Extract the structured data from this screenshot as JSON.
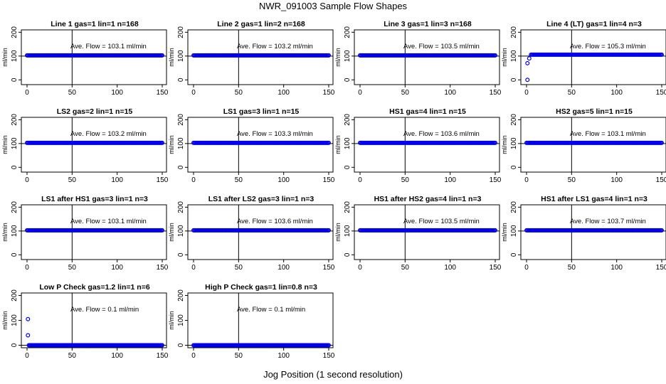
{
  "figure": {
    "title": "NWR_091003  Sample Flow Shapes",
    "xlabel": "Jog Position (1 second resolution)"
  },
  "colors": {
    "points": "#0000ee",
    "axis": "#000000",
    "background": "#ffffff"
  },
  "chart_data": [
    {
      "type": "scatter",
      "title": "Line 1 gas=1 lin=1 n=168",
      "ylabel": "ml/min",
      "annotation": "Ave. Flow =  103.1  ml/min",
      "xlim": [
        0,
        150
      ],
      "ylim": [
        -20,
        210
      ],
      "xticks": [
        0,
        50,
        100,
        150
      ],
      "yticks": [
        0,
        100,
        200
      ],
      "vline": 50,
      "hline": 100,
      "series": [
        {
          "x_range": [
            0,
            150
          ],
          "y": 103
        }
      ],
      "outliers": []
    },
    {
      "type": "scatter",
      "title": "Line 2 gas=1 lin=2 n=168",
      "ylabel": "ml/min",
      "annotation": "Ave. Flow =  103.2  ml/min",
      "xlim": [
        0,
        150
      ],
      "ylim": [
        -20,
        210
      ],
      "xticks": [
        0,
        50,
        100,
        150
      ],
      "yticks": [
        0,
        100,
        200
      ],
      "vline": 50,
      "hline": 100,
      "series": [
        {
          "x_range": [
            0,
            150
          ],
          "y": 103
        }
      ],
      "outliers": []
    },
    {
      "type": "scatter",
      "title": "Line 3 gas=1 lin=3 n=168",
      "ylabel": "ml/min",
      "annotation": "Ave. Flow =  103.5  ml/min",
      "xlim": [
        0,
        150
      ],
      "ylim": [
        -20,
        210
      ],
      "xticks": [
        0,
        50,
        100,
        150
      ],
      "yticks": [
        0,
        100,
        200
      ],
      "vline": 50,
      "hline": 100,
      "series": [
        {
          "x_range": [
            0,
            150
          ],
          "y": 103
        }
      ],
      "outliers": []
    },
    {
      "type": "scatter",
      "title": "Line 4 (LT) gas=1 lin=4 n=3",
      "ylabel": "ml/min",
      "annotation": "Ave. Flow =  105.3  ml/min",
      "xlim": [
        0,
        150
      ],
      "ylim": [
        -20,
        210
      ],
      "xticks": [
        0,
        50,
        100,
        150
      ],
      "yticks": [
        0,
        100,
        200
      ],
      "vline": 50,
      "hline": 100,
      "series": [
        {
          "x_range": [
            5,
            150
          ],
          "y": 106
        }
      ],
      "outliers": [
        {
          "x": 1,
          "y": 0
        },
        {
          "x": 1,
          "y": 70
        },
        {
          "x": 3,
          "y": 90
        }
      ]
    },
    {
      "type": "scatter",
      "title": "LS2 gas=2 lin=1 n=15",
      "ylabel": "ml/min",
      "annotation": "Ave. Flow =  103.2  ml/min",
      "xlim": [
        0,
        150
      ],
      "ylim": [
        -20,
        210
      ],
      "xticks": [
        0,
        50,
        100,
        150
      ],
      "yticks": [
        0,
        100,
        200
      ],
      "vline": 50,
      "hline": 100,
      "series": [
        {
          "x_range": [
            0,
            150
          ],
          "y": 103
        }
      ],
      "outliers": []
    },
    {
      "type": "scatter",
      "title": "LS1 gas=3 lin=1 n=15",
      "ylabel": "ml/min",
      "annotation": "Ave. Flow =  103.3  ml/min",
      "xlim": [
        0,
        150
      ],
      "ylim": [
        -20,
        210
      ],
      "xticks": [
        0,
        50,
        100,
        150
      ],
      "yticks": [
        0,
        100,
        200
      ],
      "vline": 50,
      "hline": 100,
      "series": [
        {
          "x_range": [
            0,
            150
          ],
          "y": 103
        }
      ],
      "outliers": []
    },
    {
      "type": "scatter",
      "title": "HS1 gas=4 lin=1 n=15",
      "ylabel": "ml/min",
      "annotation": "Ave. Flow =  103.6  ml/min",
      "xlim": [
        0,
        150
      ],
      "ylim": [
        -20,
        210
      ],
      "xticks": [
        0,
        50,
        100,
        150
      ],
      "yticks": [
        0,
        100,
        200
      ],
      "vline": 50,
      "hline": 100,
      "series": [
        {
          "x_range": [
            0,
            150
          ],
          "y": 103
        }
      ],
      "outliers": []
    },
    {
      "type": "scatter",
      "title": "HS2 gas=5 lin=1 n=15",
      "ylabel": "ml/min",
      "annotation": "Ave. Flow =  103.1  ml/min",
      "xlim": [
        0,
        150
      ],
      "ylim": [
        -20,
        210
      ],
      "xticks": [
        0,
        50,
        100,
        150
      ],
      "yticks": [
        0,
        100,
        200
      ],
      "vline": 50,
      "hline": 100,
      "series": [
        {
          "x_range": [
            0,
            150
          ],
          "y": 103
        }
      ],
      "outliers": []
    },
    {
      "type": "scatter",
      "title": "LS1 after HS1 gas=3 lin=1 n=3",
      "ylabel": "ml/min",
      "annotation": "Ave. Flow =  103.1  ml/min",
      "xlim": [
        0,
        150
      ],
      "ylim": [
        -20,
        210
      ],
      "xticks": [
        0,
        50,
        100,
        150
      ],
      "yticks": [
        0,
        100,
        200
      ],
      "vline": 50,
      "hline": 100,
      "series": [
        {
          "x_range": [
            0,
            150
          ],
          "y": 103
        }
      ],
      "outliers": []
    },
    {
      "type": "scatter",
      "title": "LS1 after LS2 gas=3 lin=1 n=3",
      "ylabel": "ml/min",
      "annotation": "Ave. Flow =  103.6  ml/min",
      "xlim": [
        0,
        150
      ],
      "ylim": [
        -20,
        210
      ],
      "xticks": [
        0,
        50,
        100,
        150
      ],
      "yticks": [
        0,
        100,
        200
      ],
      "vline": 50,
      "hline": 100,
      "series": [
        {
          "x_range": [
            0,
            150
          ],
          "y": 103
        }
      ],
      "outliers": []
    },
    {
      "type": "scatter",
      "title": "HS1 after HS2 gas=4 lin=1 n=3",
      "ylabel": "ml/min",
      "annotation": "Ave. Flow =  103.5  ml/min",
      "xlim": [
        0,
        150
      ],
      "ylim": [
        -20,
        210
      ],
      "xticks": [
        0,
        50,
        100,
        150
      ],
      "yticks": [
        0,
        100,
        200
      ],
      "vline": 50,
      "hline": 100,
      "series": [
        {
          "x_range": [
            0,
            150
          ],
          "y": 103
        }
      ],
      "outliers": []
    },
    {
      "type": "scatter",
      "title": "HS1 after LS1 gas=4 lin=1 n=3",
      "ylabel": "ml/min",
      "annotation": "Ave. Flow =  103.7  ml/min",
      "xlim": [
        0,
        150
      ],
      "ylim": [
        -20,
        210
      ],
      "xticks": [
        0,
        50,
        100,
        150
      ],
      "yticks": [
        0,
        100,
        200
      ],
      "vline": 50,
      "hline": 100,
      "series": [
        {
          "x_range": [
            0,
            150
          ],
          "y": 103
        }
      ],
      "outliers": []
    },
    {
      "type": "scatter",
      "title": "Low P Check gas=1.2 lin=1 n=6",
      "ylabel": "ml/min",
      "annotation": "Ave. Flow =  0.1  ml/min",
      "xlim": [
        0,
        150
      ],
      "ylim": [
        -10,
        210
      ],
      "xticks": [
        0,
        50,
        100,
        150
      ],
      "yticks": [
        0,
        100,
        200
      ],
      "vline": 50,
      "hline": 0,
      "series": [
        {
          "x_range": [
            2,
            150
          ],
          "y": 0
        }
      ],
      "outliers": [
        {
          "x": 1,
          "y": 105
        },
        {
          "x": 1,
          "y": 40
        }
      ]
    },
    {
      "type": "scatter",
      "title": "High P Check gas=1 lin=0.8 n=3",
      "ylabel": "ml/min",
      "annotation": "Ave. Flow =  0.1  ml/min",
      "xlim": [
        0,
        150
      ],
      "ylim": [
        -10,
        210
      ],
      "xticks": [
        0,
        50,
        100,
        150
      ],
      "yticks": [
        0,
        100,
        200
      ],
      "vline": 50,
      "hline": 0,
      "series": [
        {
          "x_range": [
            0,
            150
          ],
          "y": 0
        }
      ],
      "outliers": []
    }
  ]
}
